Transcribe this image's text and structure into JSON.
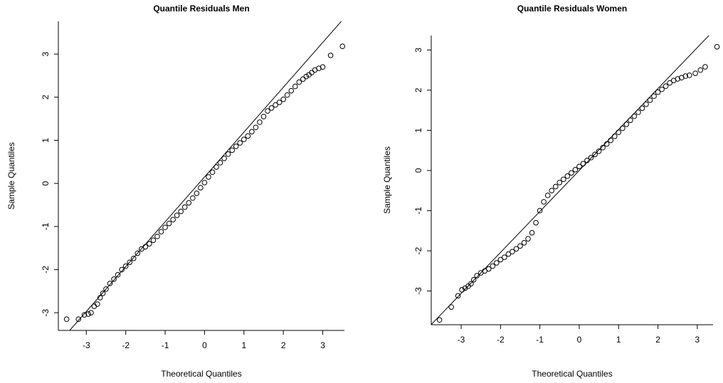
{
  "chart_data": [
    {
      "type": "scatter",
      "title": "Quantile Residuals Men",
      "x_label": "Theoretical Quantiles",
      "y_label": "Sample Quantiles",
      "x": [
        -3.5,
        -3.2,
        -3.05,
        -2.95,
        -2.88,
        -2.8,
        -2.72,
        -2.65,
        -2.58,
        -2.5,
        -2.4,
        -2.3,
        -2.2,
        -2.1,
        -2.0,
        -1.9,
        -1.8,
        -1.7,
        -1.6,
        -1.5,
        -1.4,
        -1.3,
        -1.2,
        -1.1,
        -1.0,
        -0.9,
        -0.8,
        -0.7,
        -0.6,
        -0.5,
        -0.4,
        -0.3,
        -0.2,
        -0.1,
        0,
        0.1,
        0.2,
        0.3,
        0.4,
        0.5,
        0.6,
        0.7,
        0.8,
        0.9,
        1.0,
        1.1,
        1.2,
        1.3,
        1.4,
        1.5,
        1.6,
        1.7,
        1.8,
        1.9,
        2.0,
        2.1,
        2.2,
        2.3,
        2.4,
        2.5,
        2.58,
        2.65,
        2.72,
        2.8,
        2.9,
        3.0,
        3.2,
        3.5
      ],
      "y": [
        -3.15,
        -3.15,
        -3.05,
        -3.03,
        -3.0,
        -2.85,
        -2.8,
        -2.65,
        -2.55,
        -2.45,
        -2.32,
        -2.22,
        -2.12,
        -2.0,
        -1.92,
        -1.83,
        -1.74,
        -1.62,
        -1.52,
        -1.47,
        -1.4,
        -1.32,
        -1.23,
        -1.12,
        -1.02,
        -0.93,
        -0.84,
        -0.74,
        -0.65,
        -0.55,
        -0.45,
        -0.34,
        -0.23,
        -0.1,
        0.02,
        0.15,
        0.26,
        0.38,
        0.48,
        0.58,
        0.68,
        0.77,
        0.86,
        0.94,
        1.02,
        1.1,
        1.2,
        1.3,
        1.42,
        1.55,
        1.68,
        1.75,
        1.82,
        1.88,
        1.95,
        2.05,
        2.15,
        2.25,
        2.35,
        2.42,
        2.48,
        2.52,
        2.57,
        2.63,
        2.67,
        2.7,
        2.97,
        3.18
      ],
      "xlim": [
        -3.71,
        3.55
      ],
      "ylim": [
        -3.41,
        3.76
      ],
      "xticks": [
        -3,
        -2,
        -1,
        0,
        1,
        2,
        3
      ],
      "yticks": [
        -3,
        -2,
        -1,
        0,
        1,
        2,
        3
      ],
      "reference_line": {
        "slope": 1.04,
        "intercept": 0.15
      },
      "color": "#000000"
    },
    {
      "type": "scatter",
      "title": "Quantile Residuals Women",
      "x_label": "Theoretical Quantiles",
      "y_label": "Sample Quantiles",
      "x": [
        -3.55,
        -3.25,
        -3.08,
        -2.98,
        -2.9,
        -2.82,
        -2.75,
        -2.68,
        -2.6,
        -2.5,
        -2.4,
        -2.3,
        -2.2,
        -2.1,
        -2.0,
        -1.9,
        -1.8,
        -1.7,
        -1.6,
        -1.5,
        -1.4,
        -1.3,
        -1.2,
        -1.1,
        -1.0,
        -0.9,
        -0.8,
        -0.7,
        -0.6,
        -0.5,
        -0.4,
        -0.3,
        -0.2,
        -0.1,
        0,
        0.1,
        0.2,
        0.3,
        0.4,
        0.5,
        0.6,
        0.7,
        0.8,
        0.9,
        1.0,
        1.1,
        1.2,
        1.3,
        1.4,
        1.5,
        1.6,
        1.7,
        1.8,
        1.9,
        2.0,
        2.1,
        2.2,
        2.3,
        2.4,
        2.5,
        2.6,
        2.7,
        2.8,
        2.95,
        3.08,
        3.2,
        3.5
      ],
      "y": [
        -3.72,
        -3.4,
        -3.12,
        -2.97,
        -2.93,
        -2.88,
        -2.82,
        -2.72,
        -2.62,
        -2.55,
        -2.5,
        -2.45,
        -2.38,
        -2.3,
        -2.22,
        -2.16,
        -2.08,
        -2.02,
        -1.95,
        -1.88,
        -1.8,
        -1.7,
        -1.55,
        -1.3,
        -1.0,
        -0.78,
        -0.62,
        -0.5,
        -0.4,
        -0.3,
        -0.22,
        -0.14,
        -0.06,
        0.02,
        0.1,
        0.17,
        0.25,
        0.32,
        0.4,
        0.48,
        0.57,
        0.66,
        0.75,
        0.85,
        0.95,
        1.05,
        1.15,
        1.25,
        1.35,
        1.45,
        1.55,
        1.65,
        1.75,
        1.85,
        1.95,
        2.02,
        2.1,
        2.18,
        2.24,
        2.28,
        2.31,
        2.35,
        2.37,
        2.42,
        2.5,
        2.58,
        3.08
      ],
      "xlim": [
        -3.76,
        3.4
      ],
      "ylim": [
        -3.84,
        3.36
      ],
      "xticks": [
        -3,
        -2,
        -1,
        0,
        1,
        2,
        3
      ],
      "yticks": [
        -3,
        -2,
        -1,
        0,
        1,
        2,
        3
      ],
      "reference_line": {
        "slope": 1.02,
        "intercept": 0.0
      },
      "color": "#000000"
    }
  ]
}
